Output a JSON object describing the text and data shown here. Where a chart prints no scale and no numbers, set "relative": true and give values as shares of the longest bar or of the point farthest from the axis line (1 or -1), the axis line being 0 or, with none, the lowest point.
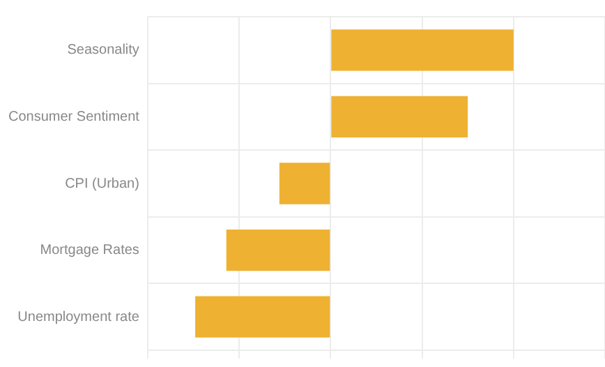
{
  "chart_data": {
    "type": "bar",
    "orientation": "horizontal",
    "relative": true,
    "categories": [
      "Seasonality",
      "Consumer Sentiment",
      "CPI (Urban)",
      "Mortgage Rates",
      "Unemployment rate"
    ],
    "series": [
      {
        "color": "#eeb132",
        "values": [
          1,
          0.75,
          -0.28,
          -0.57,
          -0.74
        ]
      }
    ],
    "grid": true,
    "legend": false
  }
}
